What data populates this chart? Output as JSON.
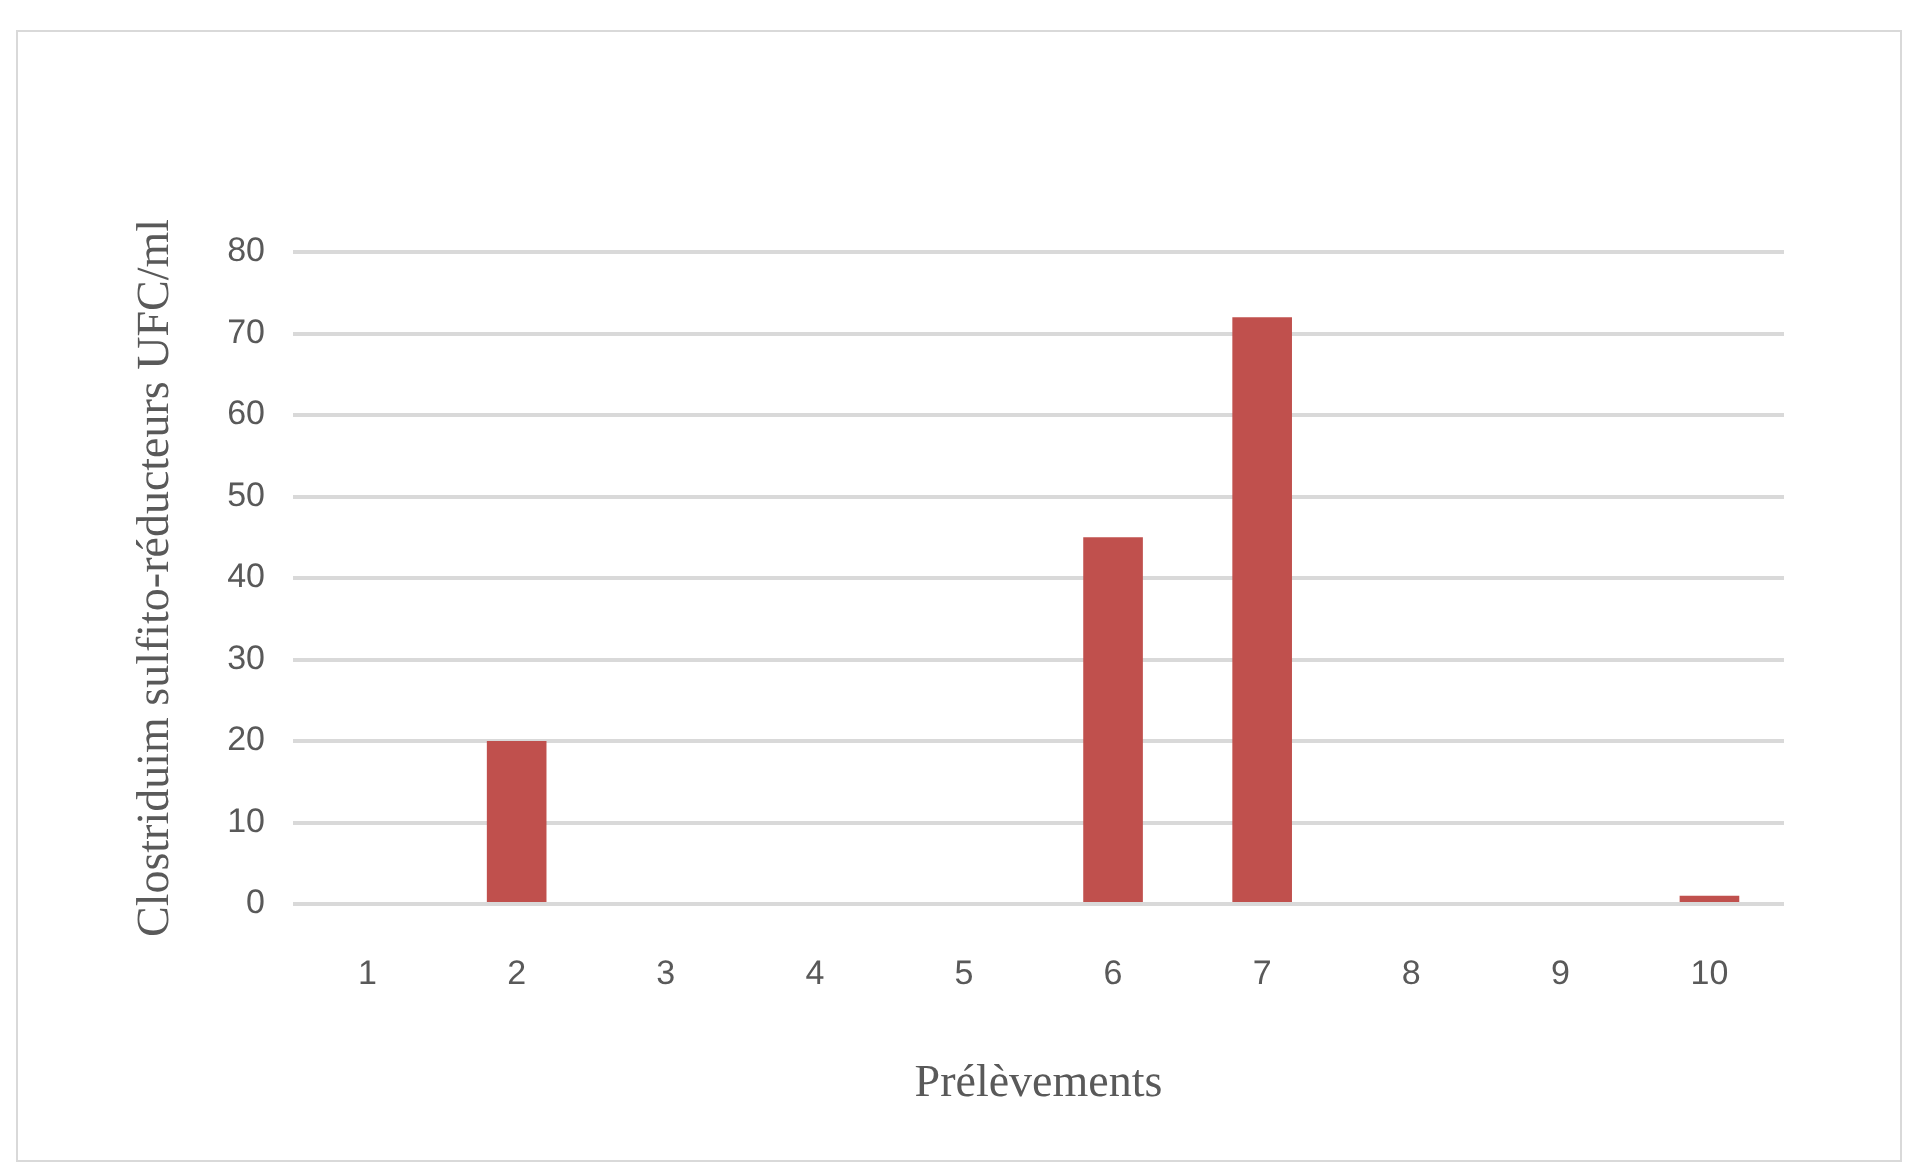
{
  "chart_data": {
    "type": "bar",
    "categories": [
      "1",
      "2",
      "3",
      "4",
      "5",
      "6",
      "7",
      "8",
      "9",
      "10"
    ],
    "values": [
      0,
      20,
      0,
      0,
      0,
      45,
      72,
      0,
      0,
      1
    ],
    "color": "#c0504d",
    "xlabel": "Prélèvements",
    "ylabel": "Clostriduim sulfito-réducteurs UFC/ml",
    "ylim": [
      0,
      80
    ],
    "yticks": [
      0,
      10,
      20,
      30,
      40,
      50,
      60,
      70,
      80
    ],
    "grid": "y"
  }
}
